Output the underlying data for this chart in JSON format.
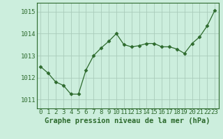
{
  "x": [
    0,
    1,
    2,
    3,
    4,
    5,
    6,
    7,
    8,
    9,
    10,
    11,
    12,
    13,
    14,
    15,
    16,
    17,
    18,
    19,
    20,
    21,
    22,
    23
  ],
  "y": [
    1012.5,
    1012.2,
    1011.8,
    1011.65,
    1011.25,
    1011.25,
    1012.35,
    1013.0,
    1013.35,
    1013.65,
    1014.0,
    1013.5,
    1013.4,
    1013.45,
    1013.55,
    1013.55,
    1013.4,
    1013.4,
    1013.3,
    1013.1,
    1013.55,
    1013.85,
    1014.35,
    1015.05
  ],
  "line_color": "#2d6a2d",
  "marker": "D",
  "marker_size": 2.5,
  "bg_color": "#cceedd",
  "grid_color": "#aaccbb",
  "xlabel": "Graphe pression niveau de la mer (hPa)",
  "xlabel_fontsize": 7.5,
  "tick_label_color": "#2d6a2d",
  "tick_fontsize": 6.5,
  "ylim": [
    1010.6,
    1015.4
  ],
  "yticks": [
    1011,
    1012,
    1013,
    1014,
    1015
  ],
  "xlim": [
    -0.5,
    23.5
  ],
  "xticks": [
    0,
    1,
    2,
    3,
    4,
    5,
    6,
    7,
    8,
    9,
    10,
    11,
    12,
    13,
    14,
    15,
    16,
    17,
    18,
    19,
    20,
    21,
    22,
    23
  ]
}
